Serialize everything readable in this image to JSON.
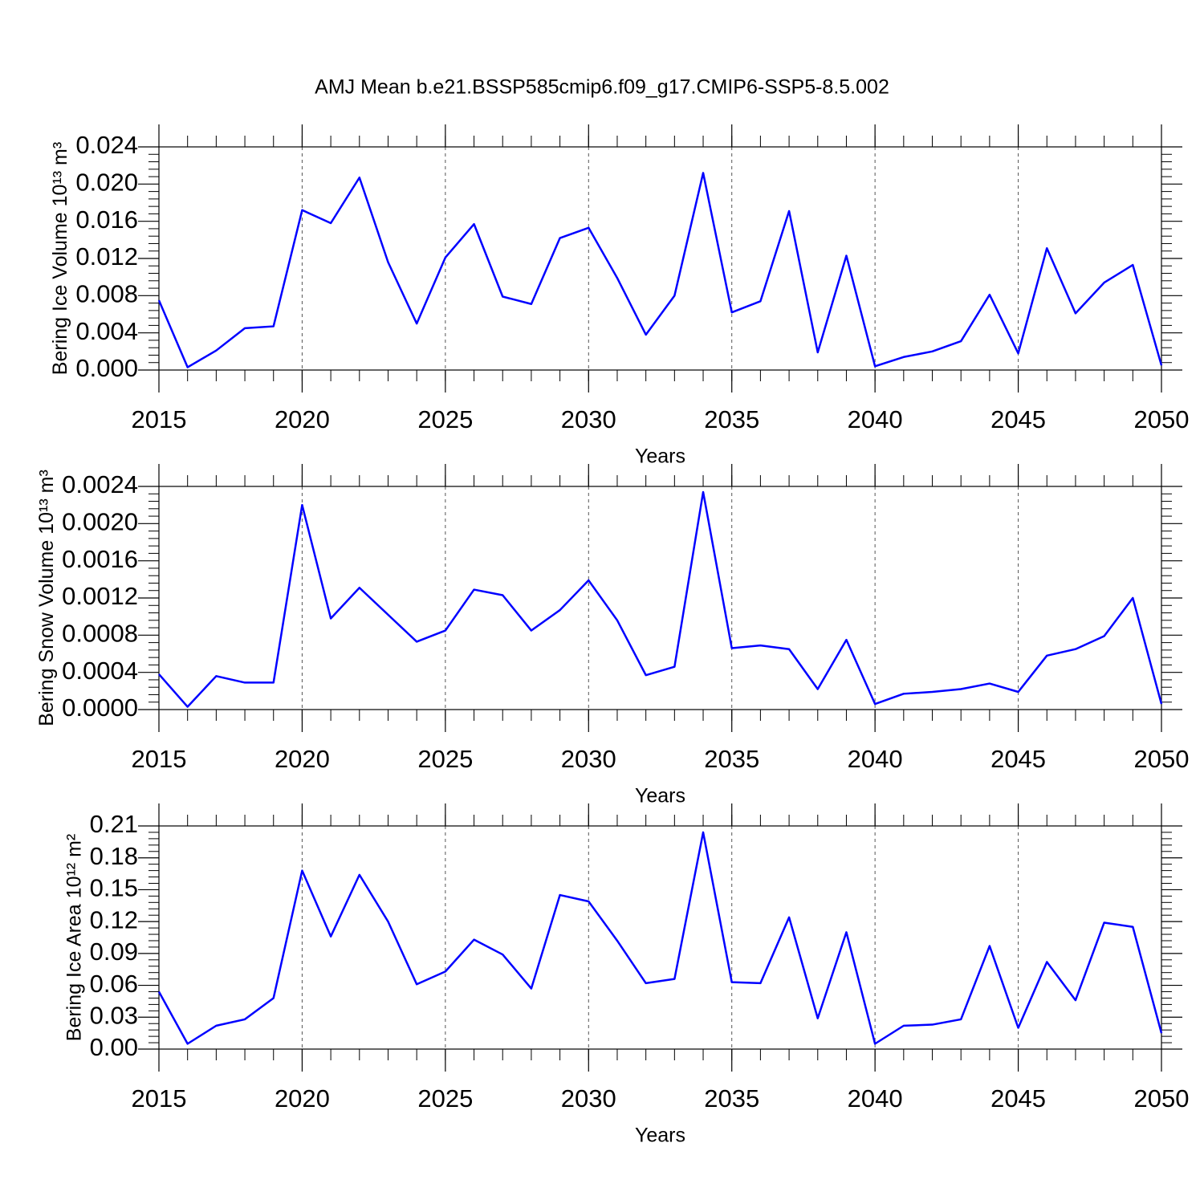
{
  "title": "AMJ Mean b.e21.BSSP585cmip6.f09_g17.CMIP6-SSP5-8.5.002",
  "chart_data": [
    {
      "type": "line",
      "ylabel": "Bering Ice Volume 10¹³ m³",
      "xlabel": "Years",
      "color": "#0000ff",
      "xgrid": true,
      "x": [
        2015,
        2016,
        2017,
        2018,
        2019,
        2020,
        2021,
        2022,
        2023,
        2024,
        2025,
        2026,
        2027,
        2028,
        2029,
        2030,
        2031,
        2032,
        2033,
        2034,
        2035,
        2036,
        2037,
        2038,
        2039,
        2040,
        2041,
        2042,
        2043,
        2044,
        2045,
        2046,
        2047,
        2048,
        2049,
        2050
      ],
      "values": [
        0.0075,
        0.0003,
        0.0021,
        0.0045,
        0.0047,
        0.0172,
        0.0158,
        0.0207,
        0.0116,
        0.005,
        0.0121,
        0.0157,
        0.0079,
        0.0071,
        0.0142,
        0.0153,
        0.0099,
        0.0038,
        0.008,
        0.0212,
        0.0062,
        0.0074,
        0.0171,
        0.0019,
        0.0123,
        0.0004,
        0.0014,
        0.002,
        0.0031,
        0.0081,
        0.0018,
        0.0131,
        0.0061,
        0.0094,
        0.0113,
        0.0005
      ],
      "xlim": [
        2015,
        2050
      ],
      "xticks": [
        2015,
        2020,
        2025,
        2030,
        2035,
        2040,
        2045,
        2050
      ],
      "ylim": [
        0,
        0.024
      ],
      "yticks": [
        {
          "value": 0,
          "label": "0.000"
        },
        0.004,
        0.008,
        0.012,
        0.016,
        {
          "value": 0.02,
          "label": "0.020"
        },
        0.024
      ]
    },
    {
      "type": "line",
      "ylabel": "Bering Snow Volume 10¹³ m³",
      "xlabel": "Years",
      "color": "#0000ff",
      "xgrid": true,
      "x": [
        2015,
        2016,
        2017,
        2018,
        2019,
        2020,
        2021,
        2022,
        2023,
        2024,
        2025,
        2026,
        2027,
        2028,
        2029,
        2030,
        2031,
        2032,
        2033,
        2034,
        2035,
        2036,
        2037,
        2038,
        2039,
        2040,
        2041,
        2042,
        2043,
        2044,
        2045,
        2046,
        2047,
        2048,
        2049,
        2050
      ],
      "values": [
        0.00038,
        3e-05,
        0.00036,
        0.00029,
        0.00029,
        0.0022,
        0.00098,
        0.00131,
        0.00102,
        0.00073,
        0.00085,
        0.00129,
        0.00123,
        0.00085,
        0.00107,
        0.00139,
        0.00096,
        0.00037,
        0.00046,
        0.00234,
        0.00066,
        0.00069,
        0.00065,
        0.00022,
        0.00075,
        6e-05,
        0.00017,
        0.00019,
        0.00022,
        0.00028,
        0.00019,
        0.00058,
        0.00065,
        0.00079,
        0.0012,
        6e-05
      ],
      "xlim": [
        2015,
        2050
      ],
      "xticks": [
        2015,
        2020,
        2025,
        2030,
        2035,
        2040,
        2045,
        2050
      ],
      "ylim": [
        0,
        0.0024
      ],
      "yticks": [
        {
          "value": 0,
          "label": "0.0000"
        },
        0.0004,
        0.0008,
        0.0012,
        0.0016,
        {
          "value": 0.002,
          "label": "0.0020"
        },
        0.0024
      ]
    },
    {
      "type": "line",
      "ylabel": "Bering Ice Area 10¹² m²",
      "xlabel": "Years",
      "color": "#0000ff",
      "xgrid": true,
      "x": [
        2015,
        2016,
        2017,
        2018,
        2019,
        2020,
        2021,
        2022,
        2023,
        2024,
        2025,
        2026,
        2027,
        2028,
        2029,
        2030,
        2031,
        2032,
        2033,
        2034,
        2035,
        2036,
        2037,
        2038,
        2039,
        2040,
        2041,
        2042,
        2043,
        2044,
        2045,
        2046,
        2047,
        2048,
        2049,
        2050
      ],
      "values": [
        0.054,
        0.005,
        0.022,
        0.028,
        0.048,
        0.168,
        0.106,
        0.164,
        0.12,
        0.061,
        0.073,
        0.103,
        0.089,
        0.057,
        0.145,
        0.139,
        0.102,
        0.062,
        0.066,
        0.204,
        0.063,
        0.062,
        0.124,
        0.029,
        0.11,
        0.005,
        0.022,
        0.023,
        0.028,
        0.097,
        0.02,
        0.082,
        0.046,
        0.119,
        0.115,
        0.015
      ],
      "xlim": [
        2015,
        2050
      ],
      "xticks": [
        2015,
        2020,
        2025,
        2030,
        2035,
        2040,
        2045,
        2050
      ],
      "ylim": [
        0,
        0.21
      ],
      "yticks": [
        {
          "value": 0,
          "label": "0.00"
        },
        0.03,
        0.06,
        0.09,
        0.12,
        0.15,
        0.18,
        0.21
      ]
    }
  ]
}
